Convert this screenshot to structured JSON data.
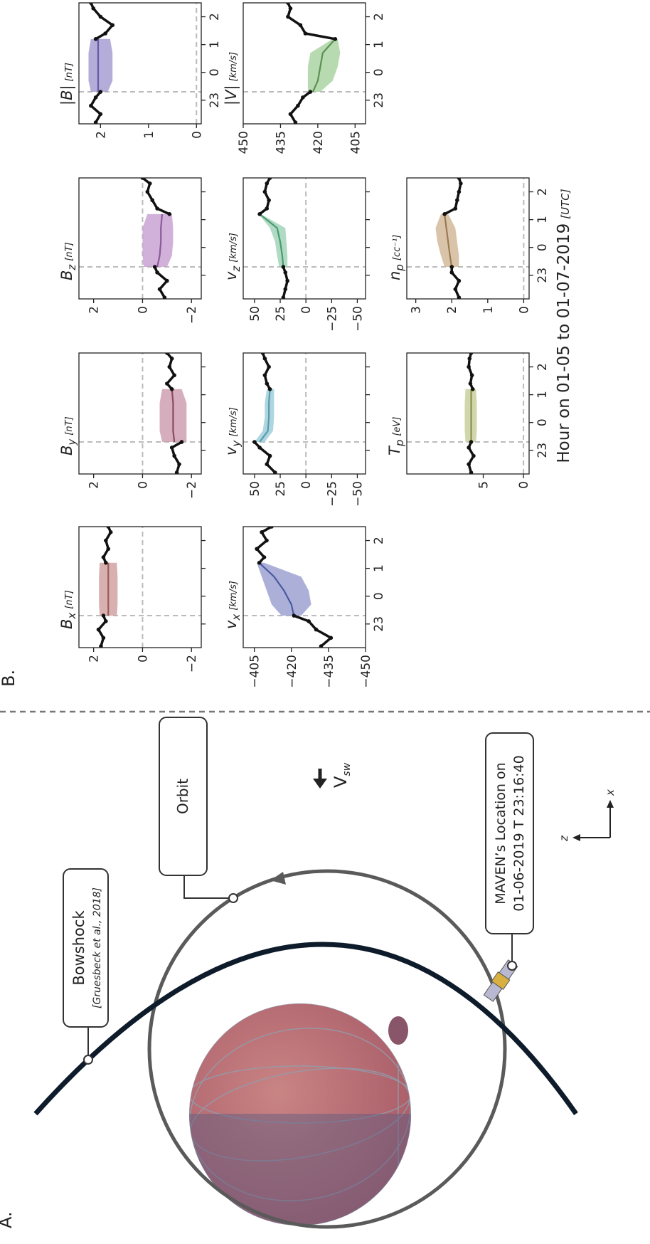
{
  "figure": {
    "panel_a_label": "A.",
    "panel_b_label": "B.",
    "xlabel": "Hour on 01-05 to 01-07-2019",
    "xlabel_unit": "[UTC]"
  },
  "diagram": {
    "bowshock_label": "Bowshock",
    "bowshock_ref": "[Gruesbeck et al., 2018]",
    "orbit_label": "Orbit",
    "maven_label_line1": "MAVEN’s Location on",
    "maven_label_line2": "01-06-2019 T 23:16:40",
    "vsw_symbol": "V",
    "vsw_sub": "sw",
    "axis_x": "x",
    "axis_z": "z"
  },
  "chart_data": [
    {
      "type": "line",
      "label": {
        "symbol": "B",
        "sub": "x",
        "unit": "[nT]"
      },
      "xlim": [
        -1.85,
        2.5
      ],
      "xticks": [
        {
          "value": -1,
          "label": "23"
        },
        0,
        1,
        2
      ],
      "ylim": [
        -2.4,
        2.6
      ],
      "yticks": [
        2,
        0,
        {
          "value": -2,
          "label": "−2"
        }
      ],
      "hline": 0,
      "vline": -0.7,
      "observed": {
        "x": [
          -1.8,
          -1.5,
          -1.2,
          -0.9,
          -0.7,
          1.2,
          1.4,
          1.7,
          2.0,
          2.3,
          2.5
        ],
        "values": [
          1.7,
          1.6,
          1.8,
          1.5,
          1.6,
          1.5,
          1.6,
          1.4,
          1.5,
          1.3,
          1.4
        ],
        "color": "#111111"
      },
      "band": {
        "x": [
          -0.7,
          -0.3,
          0.2,
          0.7,
          1.2
        ],
        "mean": [
          1.4,
          1.4,
          1.4,
          1.4,
          1.4
        ],
        "upper": [
          1.75,
          1.78,
          1.78,
          1.78,
          1.75
        ],
        "lower": [
          1.05,
          1.02,
          1.02,
          1.02,
          1.05
        ],
        "color": "#d2a2a2",
        "line_color": "#9a5a5a"
      }
    },
    {
      "type": "line",
      "label": {
        "symbol": "B",
        "sub": "y",
        "unit": "[nT]"
      },
      "xlim": [
        -1.85,
        2.5
      ],
      "xticks": [
        {
          "value": -1,
          "label": "23"
        },
        0,
        1,
        2
      ],
      "ylim": [
        -2.4,
        2.6
      ],
      "yticks": [
        2,
        0,
        {
          "value": -2,
          "label": "−2"
        }
      ],
      "hline": 0,
      "vline": -0.7,
      "observed": {
        "x": [
          -1.8,
          -1.5,
          -1.2,
          -0.9,
          -0.7,
          1.2,
          1.4,
          1.7,
          2.0,
          2.3,
          2.5
        ],
        "values": [
          -1.4,
          -1.5,
          -1.3,
          -1.2,
          -1.6,
          -1.2,
          -1.0,
          -1.3,
          -1.1,
          -1.2,
          -1.0
        ],
        "color": "#111111"
      },
      "band": {
        "x": [
          -0.7,
          -0.3,
          0.2,
          0.7,
          1.2
        ],
        "mean": [
          -1.3,
          -1.25,
          -1.25,
          -1.25,
          -1.2
        ],
        "upper": [
          -0.8,
          -0.7,
          -0.7,
          -0.7,
          -0.8
        ],
        "lower": [
          -1.8,
          -1.8,
          -1.8,
          -1.8,
          -1.6
        ],
        "color": "#cf9fb0",
        "line_color": "#8a4b5c"
      }
    },
    {
      "type": "line",
      "label": {
        "symbol": "B",
        "sub": "z",
        "unit": "[nT]"
      },
      "xlim": [
        -1.85,
        2.5
      ],
      "xticks": [
        {
          "value": -1,
          "label": "23"
        },
        0,
        1,
        2
      ],
      "ylim": [
        -2.4,
        2.6
      ],
      "yticks": [
        2,
        0,
        {
          "value": -2,
          "label": "−2"
        }
      ],
      "hline": 0,
      "vline": -0.7,
      "observed": {
        "x": [
          -1.8,
          -1.5,
          -1.2,
          -0.9,
          -0.7,
          1.2,
          1.4,
          1.7,
          2.0,
          2.3,
          2.5
        ],
        "values": [
          -0.9,
          -0.7,
          -1.0,
          -0.6,
          -0.5,
          -1.1,
          -0.6,
          -0.4,
          -0.2,
          -0.3,
          0.0
        ],
        "color": "#111111"
      },
      "band": {
        "x": [
          -0.7,
          -0.3,
          0.2,
          0.7,
          1.2
        ],
        "mean": [
          -0.6,
          -0.7,
          -0.75,
          -0.75,
          -0.8
        ],
        "upper": [
          -0.05,
          0,
          0,
          0,
          -0.2
        ],
        "lower": [
          -1.0,
          -1.2,
          -1.25,
          -1.25,
          -1.2
        ],
        "color": "#c9a3d2",
        "line_color": "#8a5a99"
      }
    },
    {
      "type": "line",
      "label": {
        "symbol": "|B|",
        "unit": "[nT]"
      },
      "xlim": [
        -1.85,
        2.5
      ],
      "xticks": [
        {
          "value": -1,
          "label": "23"
        },
        0,
        1,
        2
      ],
      "ylim": [
        -0.1,
        2.45
      ],
      "yticks": [
        2,
        1,
        0
      ],
      "hline": 0,
      "vline": -0.7,
      "observed": {
        "x": [
          -1.8,
          -1.5,
          -1.2,
          -0.9,
          -0.7,
          1.2,
          1.4,
          1.7,
          2.0,
          2.3,
          2.5
        ],
        "values": [
          2.1,
          2.0,
          2.2,
          2.1,
          2.0,
          2.1,
          1.9,
          1.75,
          2.0,
          2.15,
          2.2
        ],
        "color": "#111111"
      },
      "band": {
        "x": [
          -0.7,
          -0.3,
          0.2,
          0.7,
          1.2
        ],
        "mean": [
          2.05,
          2.05,
          2.05,
          2.05,
          2.05
        ],
        "upper": [
          2.2,
          2.25,
          2.25,
          2.25,
          2.2
        ],
        "lower": [
          1.85,
          1.75,
          1.75,
          1.75,
          1.8
        ],
        "color": "#a79dd2",
        "line_color": "#6a5aa5"
      }
    },
    {
      "type": "line",
      "label": {
        "symbol": "v",
        "sub": "x",
        "unit": "[km/s]"
      },
      "xlim": [
        -1.85,
        2.5
      ],
      "xticks": [
        {
          "value": -1,
          "label": "23"
        },
        0,
        1,
        2
      ],
      "ylim": [
        -450,
        -400.5
      ],
      "yticks": [
        {
          "value": -405,
          "label": "−405"
        },
        {
          "value": -420,
          "label": "−420"
        },
        {
          "value": -435,
          "label": "−435"
        },
        {
          "value": -450,
          "label": "−450"
        }
      ],
      "vline": -0.7,
      "observed": {
        "x": [
          -1.8,
          -1.5,
          -1.2,
          -0.9,
          -0.7,
          1.2,
          1.4,
          1.7,
          2.0,
          2.3,
          2.5
        ],
        "values": [
          -432,
          -436,
          -430,
          -427,
          -421,
          -407,
          -409,
          -406,
          -410,
          -408,
          -412
        ],
        "color": "#111111"
      },
      "band": {
        "x": [
          -0.7,
          -0.3,
          0.2,
          0.7,
          1.2
        ],
        "mean": [
          -421,
          -420,
          -417,
          -413,
          -407
        ],
        "upper": [
          -416,
          -412,
          -410,
          -408,
          -406
        ],
        "lower": [
          -424,
          -428,
          -427,
          -424,
          -409
        ],
        "color": "#9da2d2",
        "line_color": "#4a5aa0"
      }
    },
    {
      "type": "line",
      "label": {
        "symbol": "v",
        "sub": "y",
        "unit": "[km/s]"
      },
      "xlim": [
        -1.85,
        2.5
      ],
      "xticks": [
        {
          "value": -1,
          "label": "23"
        },
        0,
        1,
        2
      ],
      "ylim": [
        -58,
        61
      ],
      "yticks": [
        50,
        25,
        0,
        {
          "value": -25,
          "label": "−25"
        },
        {
          "value": -50,
          "label": "−50"
        }
      ],
      "hline": 0,
      "vline": -0.7,
      "observed": {
        "x": [
          -1.8,
          -1.5,
          -1.2,
          -0.9,
          -0.7,
          1.2,
          1.4,
          1.7,
          2.0,
          2.3,
          2.5
        ],
        "values": [
          30,
          38,
          35,
          45,
          50,
          35,
          38,
          40,
          36,
          40,
          42
        ],
        "color": "#111111"
      },
      "band": {
        "x": [
          -0.7,
          -0.3,
          0.2,
          0.7,
          1.2
        ],
        "mean": [
          45,
          37,
          36,
          36,
          35
        ],
        "upper": [
          50,
          42,
          40,
          40,
          38
        ],
        "lower": [
          40,
          32,
          31,
          31,
          31
        ],
        "color": "#a0cfdc",
        "line_color": "#5a9aaa"
      }
    },
    {
      "type": "line",
      "label": {
        "symbol": "v",
        "sub": "z",
        "unit": "[km/s]"
      },
      "xlim": [
        -1.85,
        2.5
      ],
      "xticks": [
        {
          "value": -1,
          "label": "23"
        },
        0,
        1,
        2
      ],
      "ylim": [
        -58,
        61
      ],
      "yticks": [
        50,
        25,
        0,
        {
          "value": -25,
          "label": "−25"
        },
        {
          "value": -50,
          "label": "−50"
        }
      ],
      "hline": 0,
      "vline": -0.7,
      "observed": {
        "x": [
          -1.8,
          -1.5,
          -1.2,
          -0.9,
          -0.7,
          1.2,
          1.4,
          1.7,
          2.0,
          2.3,
          2.5
        ],
        "values": [
          22,
          20,
          18,
          20,
          22,
          45,
          38,
          36,
          40,
          38,
          35
        ],
        "color": "#111111"
      },
      "band": {
        "x": [
          -0.7,
          -0.3,
          0.2,
          0.7,
          1.2
        ],
        "mean": [
          22,
          23,
          25,
          28,
          45
        ],
        "upper": [
          26,
          28,
          30,
          35,
          46
        ],
        "lower": [
          18,
          18,
          19,
          20,
          44
        ],
        "color": "#a2d4b8",
        "line_color": "#4a9a70"
      }
    },
    {
      "type": "line",
      "label": {
        "symbol": "|V|",
        "unit": "[km/s]"
      },
      "xlim": [
        -1.85,
        2.5
      ],
      "xticks": [
        {
          "value": -1,
          "label": "23"
        },
        0,
        1,
        2
      ],
      "ylim": [
        400.8,
        450
      ],
      "yticks": [
        450,
        435,
        420,
        405
      ],
      "vline": -0.7,
      "observed": {
        "x": [
          -1.8,
          -1.5,
          -1.2,
          -0.9,
          -0.7,
          1.2,
          1.4,
          1.7,
          2.0,
          2.3,
          2.5
        ],
        "values": [
          429,
          431,
          428,
          426,
          423,
          413,
          425,
          427,
          432,
          431,
          432
        ],
        "color": "#111111"
      },
      "band": {
        "x": [
          -0.7,
          -0.3,
          0.2,
          0.7,
          1.2
        ],
        "mean": [
          422,
          420,
          419,
          418,
          413
        ],
        "upper": [
          424,
          424,
          424,
          423,
          414
        ],
        "lower": [
          419,
          414,
          412,
          411,
          412
        ],
        "color": "#abd3a3",
        "line_color": "#5a9050"
      }
    },
    {
      "type": "line",
      "label": {
        "symbol": "T",
        "sub": "p",
        "unit": "[eV]"
      },
      "xlim": [
        -1.85,
        2.5
      ],
      "xticks": [
        {
          "value": -1,
          "label": "23"
        },
        0,
        1,
        2
      ],
      "ylim": [
        -0.7,
        14.5
      ],
      "yticks": [
        5,
        0
      ],
      "hline": 0,
      "vline": -0.7,
      "observed": {
        "x": [
          -1.8,
          -1.5,
          -1.2,
          -0.9,
          -0.7,
          1.2,
          1.4,
          1.7,
          2.0,
          2.3,
          2.5
        ],
        "values": [
          6.5,
          6.8,
          6.2,
          6.8,
          6.5,
          6.3,
          6.6,
          6.4,
          6.8,
          6.7,
          6.5
        ],
        "color": "#111111"
      },
      "band": {
        "x": [
          -0.7,
          -0.3,
          0.2,
          0.7,
          1.2
        ],
        "mean": [
          6.5,
          6.5,
          6.5,
          6.5,
          6.5
        ],
        "upper": [
          7.2,
          7.3,
          7.3,
          7.3,
          7.2
        ],
        "lower": [
          5.9,
          5.8,
          5.8,
          5.8,
          5.9
        ],
        "color": "#cacf9c",
        "line_color": "#8a9050"
      }
    },
    {
      "type": "line",
      "label": {
        "symbol": "n",
        "sub": "p",
        "unit": "[cc⁻¹]"
      },
      "xlim": [
        -1.85,
        2.5
      ],
      "xticks": [
        {
          "value": -1,
          "label": "23"
        },
        0,
        1,
        2
      ],
      "ylim": [
        -0.15,
        3.25
      ],
      "yticks": [
        3,
        2,
        1,
        0
      ],
      "hline": 0,
      "vline": -0.7,
      "observed": {
        "x": [
          -1.8,
          -1.5,
          -1.2,
          -0.9,
          -0.7,
          1.2,
          1.4,
          1.7,
          2.0,
          2.3,
          2.5
        ],
        "values": [
          1.8,
          1.9,
          1.8,
          2.0,
          2.0,
          2.2,
          1.9,
          1.85,
          1.8,
          1.75,
          1.8
        ],
        "color": "#111111"
      },
      "band": {
        "x": [
          -0.7,
          -0.3,
          0.2,
          0.7,
          1.2
        ],
        "mean": [
          2.0,
          2.05,
          2.1,
          2.15,
          2.2
        ],
        "upper": [
          2.2,
          2.3,
          2.4,
          2.45,
          2.3
        ],
        "lower": [
          1.8,
          1.8,
          1.85,
          1.9,
          2.1
        ],
        "color": "#d4ba9a",
        "line_color": "#9a7a55"
      }
    }
  ]
}
